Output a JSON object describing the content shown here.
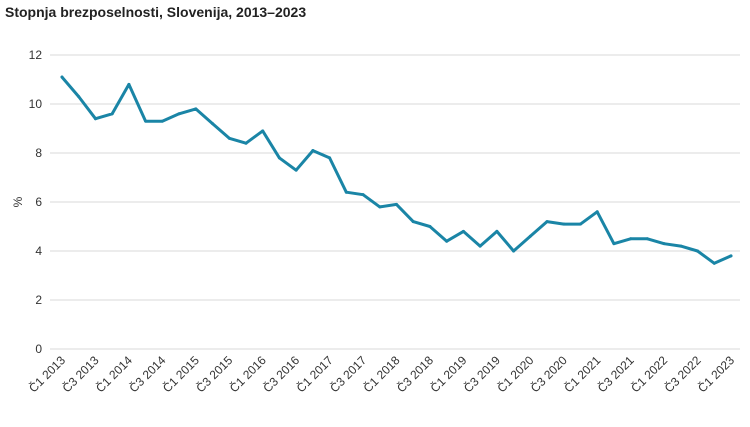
{
  "chart_data": {
    "type": "line",
    "title": "Stopnja brezposelnosti, Slovenija, 2013–2023",
    "ylabel": "%",
    "xlabel": "",
    "ylim": [
      0,
      12
    ],
    "yticks": [
      0,
      2,
      4,
      6,
      8,
      10,
      12
    ],
    "grid": true,
    "line_color": "#1a85a6",
    "x": [
      "Č1 2013",
      "Č2 2013",
      "Č3 2013",
      "Č4 2013",
      "Č1 2014",
      "Č2 2014",
      "Č3 2014",
      "Č4 2014",
      "Č1 2015",
      "Č2 2015",
      "Č3 2015",
      "Č4 2015",
      "Č1 2016",
      "Č2 2016",
      "Č3 2016",
      "Č4 2016",
      "Č1 2017",
      "Č2 2017",
      "Č3 2017",
      "Č4 2017",
      "Č1 2018",
      "Č2 2018",
      "Č3 2018",
      "Č4 2018",
      "Č1 2019",
      "Č2 2019",
      "Č3 2019",
      "Č4 2019",
      "Č1 2020",
      "Č2 2020",
      "Č3 2020",
      "Č4 2020",
      "Č1 2021",
      "Č2 2021",
      "Č3 2021",
      "Č4 2021",
      "Č1 2022",
      "Č2 2022",
      "Č3 2022",
      "Č4 2022",
      "Č1 2023"
    ],
    "xtick_labels": [
      "Č1 2013",
      "Č3 2013",
      "Č1 2014",
      "Č3 2014",
      "Č1 2015",
      "Č3 2015",
      "Č1 2016",
      "Č3 2016",
      "Č1 2017",
      "Č3 2017",
      "Č1 2018",
      "Č3 2018",
      "Č1 2019",
      "Č3 2019",
      "Č1 2020",
      "Č3 2020",
      "Č1 2021",
      "Č3 2021",
      "Č1 2022",
      "Č3 2022",
      "Č1 2023"
    ],
    "series": [
      {
        "values": [
          11.1,
          10.3,
          9.4,
          9.6,
          10.8,
          9.3,
          9.3,
          9.6,
          9.8,
          9.2,
          8.6,
          8.4,
          8.9,
          7.8,
          7.3,
          8.1,
          7.8,
          6.4,
          6.3,
          5.8,
          5.9,
          5.2,
          5.0,
          4.4,
          4.8,
          4.2,
          4.8,
          4.0,
          4.6,
          5.2,
          5.1,
          5.1,
          5.6,
          4.3,
          4.5,
          4.5,
          4.3,
          4.2,
          4.0,
          3.5,
          3.8
        ]
      }
    ]
  }
}
